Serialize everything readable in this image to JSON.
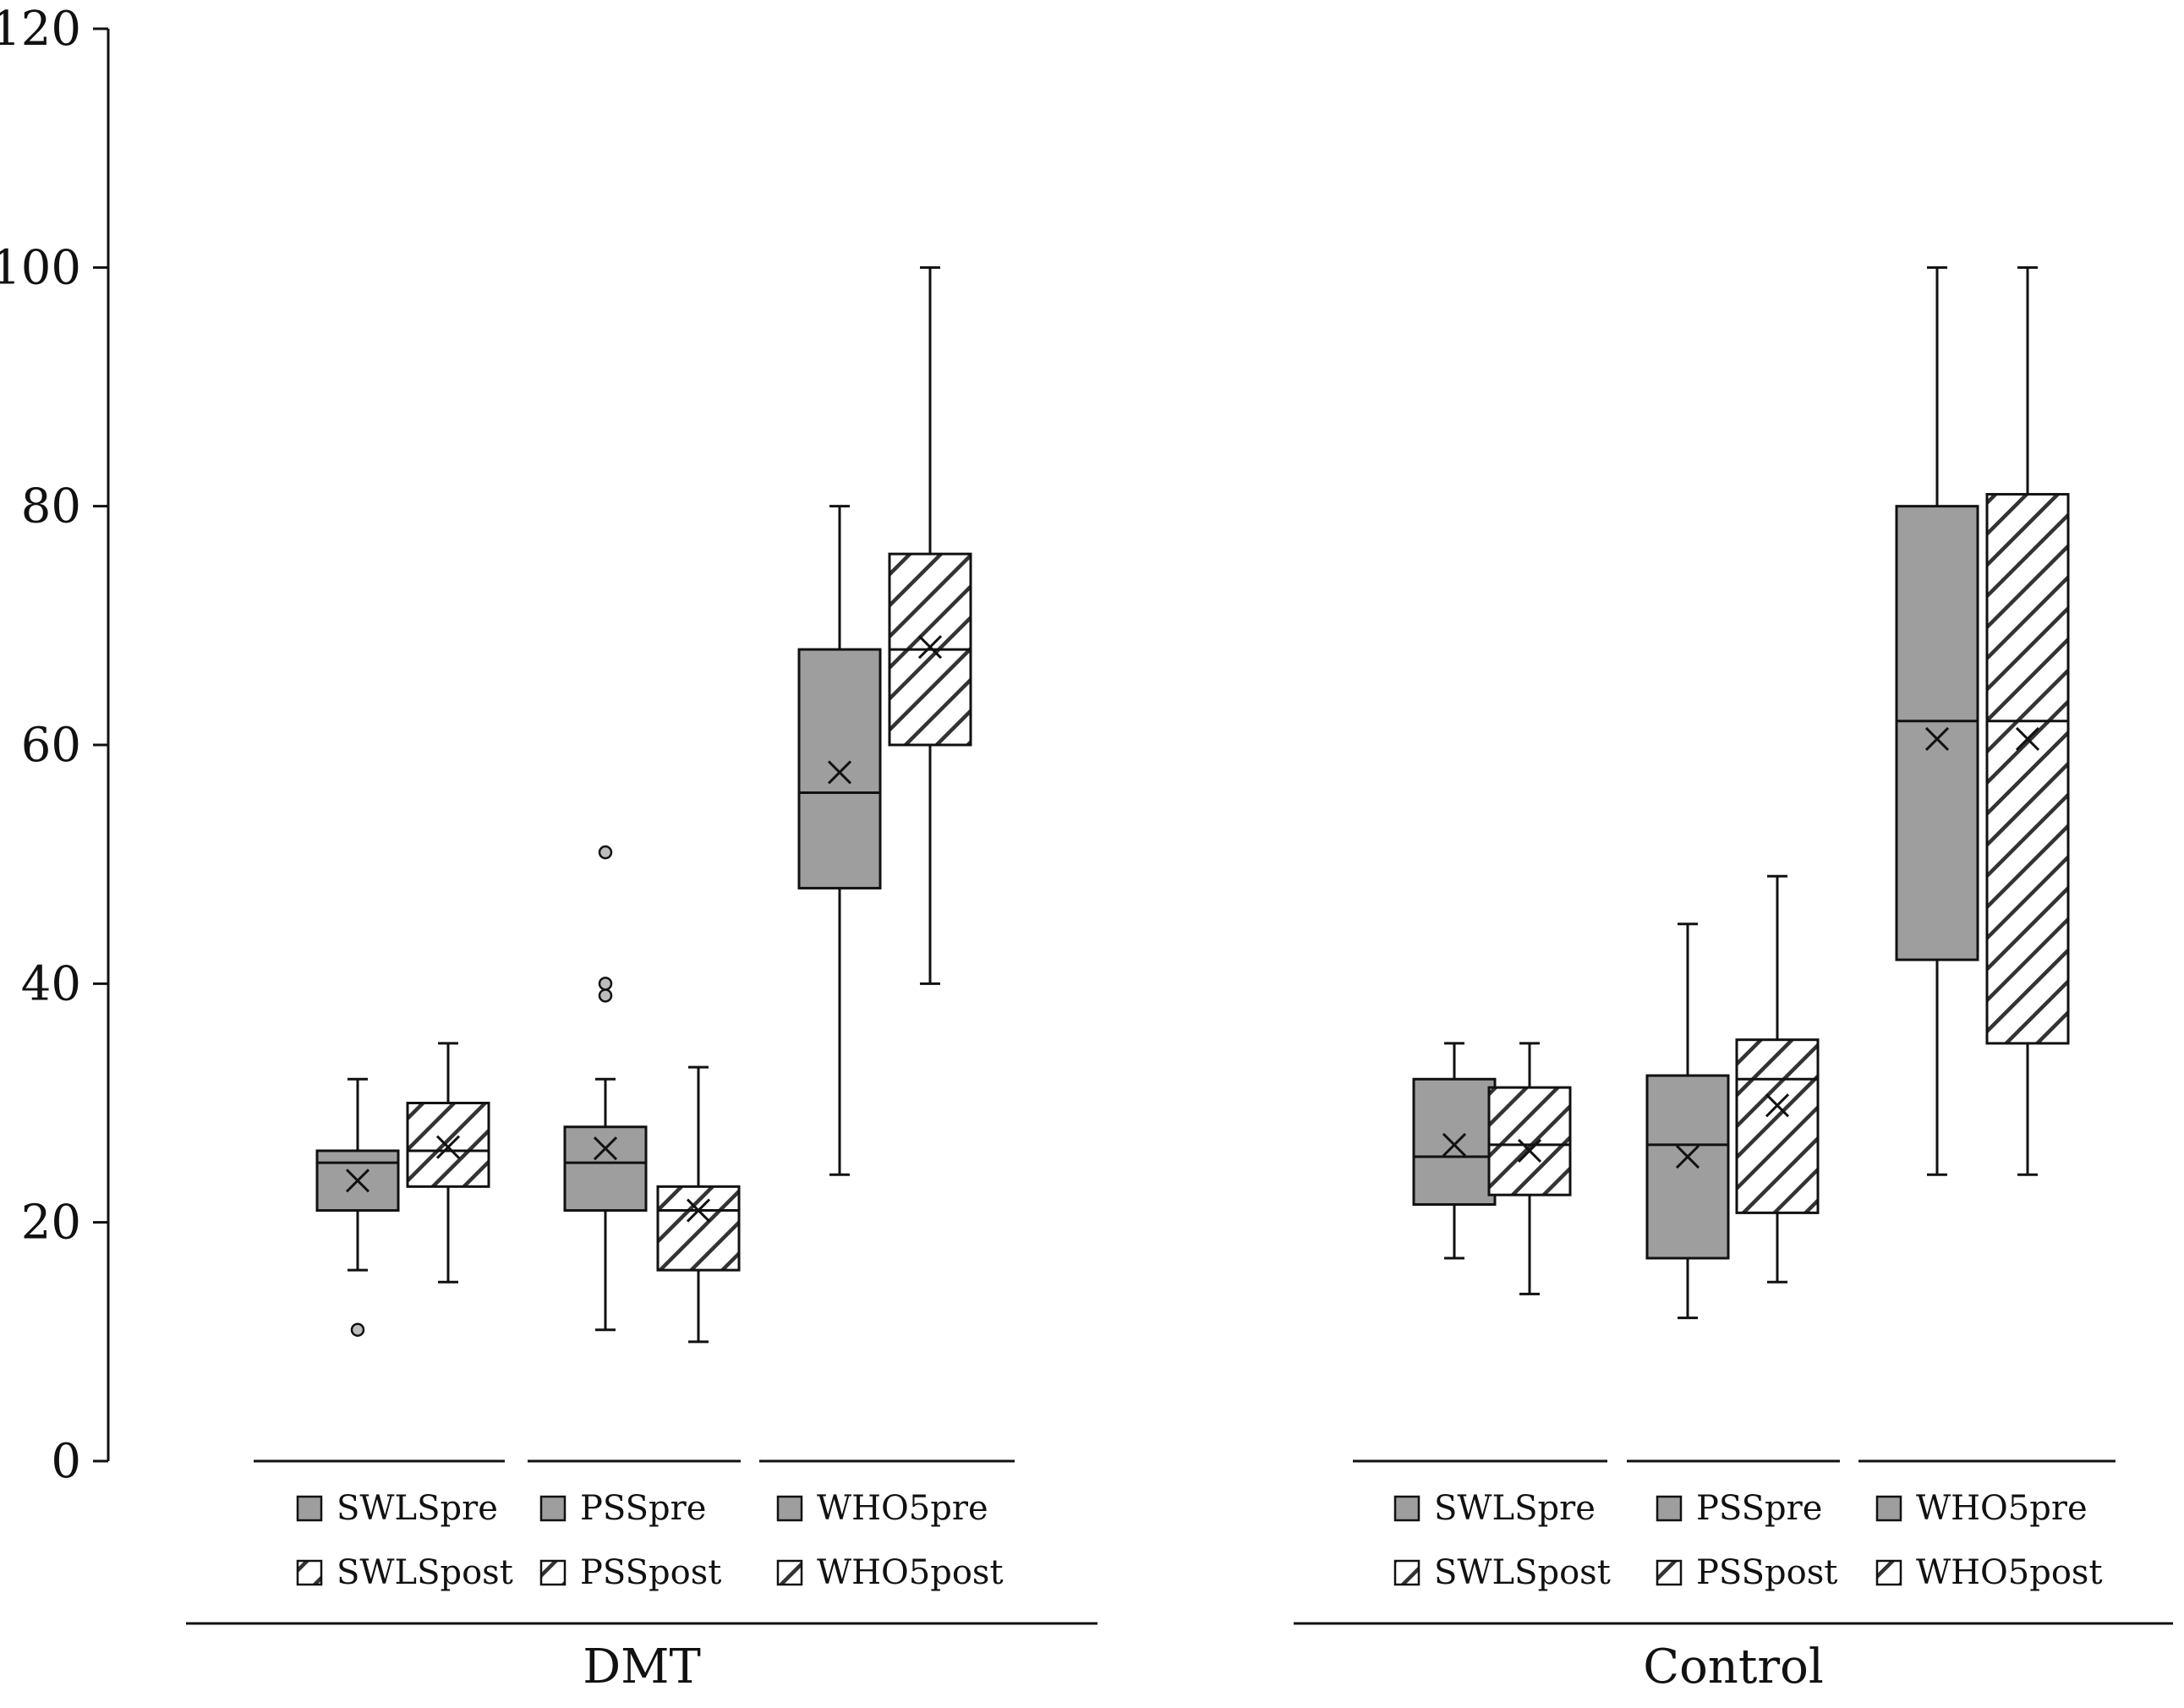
{
  "chart_data": {
    "type": "boxplot",
    "title": "",
    "xlabel": "",
    "ylabel": "",
    "ylim": [
      0,
      120
    ],
    "yticks": [
      0,
      20,
      40,
      60,
      80,
      100,
      120
    ],
    "grid": false,
    "colors": {
      "pre_fill": "#9e9e9e",
      "post_fill": "#ffffff",
      "hatch": "#333333",
      "stroke": "#111111",
      "outlier_fill": "#bdbdbd"
    },
    "groups": [
      {
        "name": "DMT",
        "subgroups": [
          {
            "legend": [
              "SWLSpre",
              "SWLSpost"
            ],
            "boxes": [
              {
                "name": "SWLSpre",
                "pattern": "solid",
                "min": 16,
                "q1": 21,
                "median": 25,
                "q3": 26,
                "max": 32,
                "mean": 23.5,
                "outliers": [
                  11
                ]
              },
              {
                "name": "SWLSpost",
                "pattern": "hatched",
                "min": 15,
                "q1": 23,
                "median": 26,
                "q3": 30,
                "max": 35,
                "mean": 26.3,
                "outliers": []
              }
            ]
          },
          {
            "legend": [
              "PSSpre",
              "PSSpost"
            ],
            "boxes": [
              {
                "name": "PSSpre",
                "pattern": "solid",
                "min": 11,
                "q1": 21,
                "median": 25,
                "q3": 28,
                "max": 32,
                "mean": 26.2,
                "outliers": [
                  39,
                  40,
                  51
                ]
              },
              {
                "name": "PSSpost",
                "pattern": "hatched",
                "min": 10,
                "q1": 16,
                "median": 21,
                "q3": 23,
                "max": 33,
                "mean": 21.0,
                "outliers": []
              }
            ]
          },
          {
            "legend": [
              "WHO5pre",
              "WHO5post"
            ],
            "boxes": [
              {
                "name": "WHO5pre",
                "pattern": "solid",
                "min": 24,
                "q1": 48,
                "median": 56,
                "q3": 68,
                "max": 80,
                "mean": 57.7,
                "outliers": []
              },
              {
                "name": "WHO5post",
                "pattern": "hatched",
                "min": 40,
                "q1": 60,
                "median": 68,
                "q3": 76,
                "max": 100,
                "mean": 68.2,
                "outliers": []
              }
            ]
          }
        ]
      },
      {
        "name": "Control",
        "subgroups": [
          {
            "legend": [
              "SWLSpre",
              "SWLSpost"
            ],
            "boxes": [
              {
                "name": "SWLSpre",
                "pattern": "solid",
                "min": 17,
                "q1": 21.5,
                "median": 25.5,
                "q3": 32,
                "max": 35,
                "mean": 26.5,
                "outliers": []
              },
              {
                "name": "SWLSpost",
                "pattern": "hatched",
                "min": 14,
                "q1": 22.3,
                "median": 26.5,
                "q3": 31.3,
                "max": 35,
                "mean": 26.0,
                "outliers": []
              }
            ]
          },
          {
            "legend": [
              "PSSpre",
              "PSSpost"
            ],
            "boxes": [
              {
                "name": "PSSpre",
                "pattern": "solid",
                "min": 12,
                "q1": 17,
                "median": 26.5,
                "q3": 32.3,
                "max": 45,
                "mean": 25.5,
                "outliers": []
              },
              {
                "name": "PSSpost",
                "pattern": "hatched",
                "min": 15,
                "q1": 20.8,
                "median": 32,
                "q3": 35.3,
                "max": 49,
                "mean": 29.8,
                "outliers": []
              }
            ]
          },
          {
            "legend": [
              "WHO5pre",
              "WHO5post"
            ],
            "boxes": [
              {
                "name": "WHO5pre",
                "pattern": "solid",
                "min": 24,
                "q1": 42,
                "median": 62,
                "q3": 80,
                "max": 100,
                "mean": 60.5,
                "outliers": []
              },
              {
                "name": "WHO5post",
                "pattern": "hatched",
                "min": 24,
                "q1": 35,
                "median": 62,
                "q3": 81,
                "max": 100,
                "mean": 60.5,
                "outliers": []
              }
            ]
          }
        ]
      }
    ]
  }
}
